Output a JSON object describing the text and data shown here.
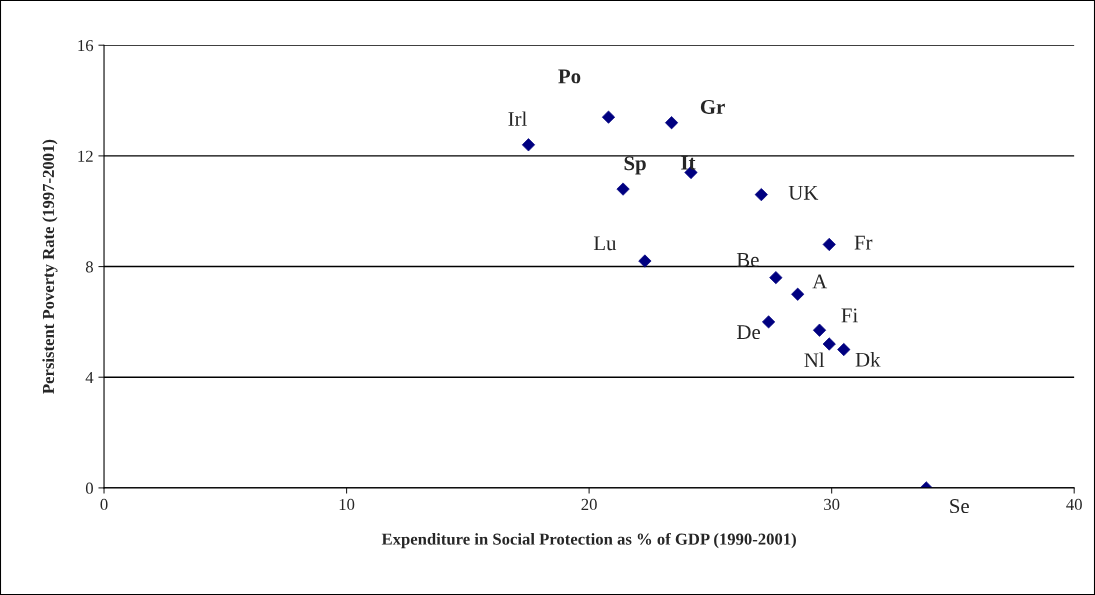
{
  "chart_data": {
    "type": "scatter",
    "xlabel": "Expenditure in Social Protection as % of GDP (1990-2001)",
    "ylabel": "Persistent Poverty Rate (1997-2001)",
    "x": [
      20.8,
      23.4,
      17.5,
      21.4,
      24.2,
      27.1,
      22.3,
      29.9,
      27.7,
      28.6,
      27.4,
      29.5,
      29.9,
      30.5,
      33.9
    ],
    "values": [
      13.4,
      13.2,
      12.4,
      10.8,
      11.4,
      10.6,
      8.2,
      8.8,
      7.6,
      7.0,
      6.0,
      5.7,
      5.2,
      5.0,
      0
    ],
    "color": "#000080",
    "marker": "diamond",
    "grid": "y",
    "legend": false,
    "xlim": [
      0,
      40
    ],
    "xticks": [
      0,
      10,
      20,
      30,
      40
    ],
    "ylim": [
      0,
      16
    ],
    "yticks": [
      0,
      4,
      8,
      12,
      16
    ],
    "annotations": [
      {
        "text": "Po",
        "x": 20.8,
        "y": 13.4
      },
      {
        "text": "Gr",
        "x": 23.4,
        "y": 13.2
      },
      {
        "text": "Irl",
        "x": 17.5,
        "y": 12.4
      },
      {
        "text": "Sp",
        "x": 21.4,
        "y": 10.8
      },
      {
        "text": "It",
        "x": 24.2,
        "y": 11.4
      },
      {
        "text": "UK",
        "x": 27.1,
        "y": 10.6
      },
      {
        "text": "Lu",
        "x": 22.3,
        "y": 8.2
      },
      {
        "text": "Fr",
        "x": 29.9,
        "y": 8.8
      },
      {
        "text": "Be",
        "x": 27.7,
        "y": 7.6
      },
      {
        "text": "A",
        "x": 28.6,
        "y": 7.0
      },
      {
        "text": "De",
        "x": 27.4,
        "y": 6.0
      },
      {
        "text": "Fi",
        "x": 29.5,
        "y": 5.7
      },
      {
        "text": "Nl",
        "x": 29.9,
        "y": 5.2
      },
      {
        "text": "Dk",
        "x": 30.5,
        "y": 5.0
      },
      {
        "text": "Se",
        "x": 33.9,
        "y": 0
      }
    ]
  }
}
